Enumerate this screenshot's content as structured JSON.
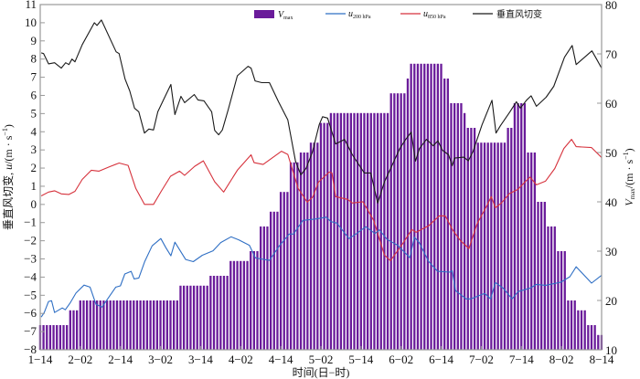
{
  "chart_data": {
    "type": "bar+line",
    "xlabel": "时间(日−时)",
    "ylabel_left": {
      "prefix": "垂直风切变, ",
      "var": "u",
      "unit": "/(m · s",
      "exp": "−1",
      "close": ")"
    },
    "ylabel_right": {
      "var": "V",
      "sub": "max",
      "unit": "/(m · s",
      "exp": "−1",
      "close": ")"
    },
    "x_unit": "hours from 1-14",
    "xlim": [
      0,
      168
    ],
    "x_ticks": [
      {
        "h": 0,
        "label": "1−14"
      },
      {
        "h": 12,
        "label": "2−02"
      },
      {
        "h": 24,
        "label": "2−14"
      },
      {
        "h": 36,
        "label": "3−02"
      },
      {
        "h": 48,
        "label": "3−14"
      },
      {
        "h": 60,
        "label": "4−02"
      },
      {
        "h": 72,
        "label": "4−14"
      },
      {
        "h": 84,
        "label": "5−02"
      },
      {
        "h": 96,
        "label": "5−14"
      },
      {
        "h": 108,
        "label": "6−02"
      },
      {
        "h": 120,
        "label": "6−14"
      },
      {
        "h": 132,
        "label": "7−02"
      },
      {
        "h": 144,
        "label": "7−14"
      },
      {
        "h": 156,
        "label": "8−02"
      },
      {
        "h": 168,
        "label": "8−14"
      }
    ],
    "ylim_left": [
      -8,
      11
    ],
    "y_ticks_left": [
      -8,
      -7,
      -6,
      -5,
      -4,
      -3,
      -2,
      -1,
      0,
      1,
      2,
      3,
      4,
      5,
      6,
      7,
      8,
      9,
      10,
      11
    ],
    "ylim_right": [
      10,
      80
    ],
    "y_ticks_right": [
      10,
      20,
      30,
      40,
      50,
      60,
      70,
      80
    ],
    "legend": [
      {
        "name": "Vmax",
        "var": "V",
        "sub": "max",
        "kind": "bar",
        "color": "#6a1b9a"
      },
      {
        "name": "u200hPa",
        "var": "u",
        "sub": "200 hPa",
        "kind": "line",
        "color": "#2f6fc4"
      },
      {
        "name": "u850hPa",
        "var": "u",
        "sub": "850 hPa",
        "kind": "line",
        "color": "#d6323c"
      },
      {
        "name": "shear",
        "var": "垂直风切变",
        "sub": "",
        "kind": "line",
        "color": "#1a1a1a"
      }
    ],
    "legend_position": "top",
    "vmax_steps": [
      [
        0,
        8,
        15
      ],
      [
        9,
        11,
        18
      ],
      [
        12,
        41,
        20
      ],
      [
        42,
        50,
        23
      ],
      [
        51,
        56,
        25
      ],
      [
        57,
        62,
        28
      ],
      [
        63,
        65,
        30
      ],
      [
        66,
        68,
        35
      ],
      [
        69,
        71,
        38
      ],
      [
        72,
        74,
        42
      ],
      [
        75,
        77,
        48
      ],
      [
        78,
        80,
        50
      ],
      [
        81,
        83,
        52
      ],
      [
        84,
        86,
        56
      ],
      [
        87,
        104,
        58
      ],
      [
        105,
        109,
        62
      ],
      [
        110,
        110,
        65
      ],
      [
        111,
        120,
        68
      ],
      [
        121,
        122,
        65
      ],
      [
        123,
        126,
        60
      ],
      [
        127,
        127,
        58
      ],
      [
        128,
        130,
        55
      ],
      [
        131,
        139,
        52
      ],
      [
        140,
        141,
        55
      ],
      [
        142,
        145,
        60
      ],
      [
        146,
        148,
        50
      ],
      [
        149,
        151,
        40
      ],
      [
        152,
        154,
        35
      ],
      [
        155,
        157,
        30
      ],
      [
        158,
        160,
        20
      ],
      [
        161,
        163,
        18
      ],
      [
        164,
        166,
        15
      ],
      [
        167,
        168,
        13
      ]
    ],
    "series": [
      {
        "name": "垂直风切变",
        "axis": "left",
        "color": "#1a1a1a",
        "points": [
          [
            0.3,
            8.34
          ],
          [
            1,
            8.3
          ],
          [
            2.5,
            7.74
          ],
          [
            4.3,
            7.8
          ],
          [
            6.3,
            7.5
          ],
          [
            7.6,
            7.8
          ],
          [
            8.6,
            7.7
          ],
          [
            9.5,
            8.0
          ],
          [
            10.4,
            7.85
          ],
          [
            12.6,
            8.8
          ],
          [
            16.2,
            10.0
          ],
          [
            17,
            9.85
          ],
          [
            18.3,
            10.15
          ],
          [
            22.7,
            8.4
          ],
          [
            23.6,
            8.3
          ],
          [
            25.4,
            6.9
          ],
          [
            26.8,
            6.25
          ],
          [
            28.2,
            5.3
          ],
          [
            29.5,
            5.1
          ],
          [
            31.2,
            3.93
          ],
          [
            32.5,
            4.15
          ],
          [
            33.9,
            4.1
          ],
          [
            35.2,
            5.1
          ],
          [
            37,
            5.8
          ],
          [
            39.1,
            6.6
          ],
          [
            40.3,
            4.95
          ],
          [
            42.1,
            5.95
          ],
          [
            43.2,
            5.6
          ],
          [
            46.1,
            6.05
          ],
          [
            47.2,
            5.75
          ],
          [
            49,
            5.7
          ],
          [
            51.3,
            5.1
          ],
          [
            52.2,
            4.08
          ],
          [
            53.4,
            3.83
          ],
          [
            54.5,
            4.1
          ],
          [
            56.3,
            5.25
          ],
          [
            59,
            7.08
          ],
          [
            62.2,
            7.6
          ],
          [
            63.1,
            7.5
          ],
          [
            64.3,
            6.8
          ],
          [
            66.3,
            6.7
          ],
          [
            68.6,
            6.7
          ],
          [
            71.3,
            5.65
          ],
          [
            74.1,
            4.65
          ],
          [
            76.4,
            2.38
          ],
          [
            78,
            1.63
          ],
          [
            79.6,
            2.0
          ],
          [
            81.4,
            2.85
          ],
          [
            83.5,
            4.4
          ],
          [
            84.5,
            4.83
          ],
          [
            86,
            4.75
          ],
          [
            88.4,
            3.33
          ],
          [
            91.1,
            3.58
          ],
          [
            93.4,
            2.73
          ],
          [
            97,
            1.73
          ],
          [
            98.9,
            1.73
          ],
          [
            101,
            0.08
          ],
          [
            103,
            1.23
          ],
          [
            107.6,
            3.08
          ],
          [
            109.4,
            3.58
          ],
          [
            111,
            3.98
          ],
          [
            112.3,
            2.38
          ],
          [
            113.5,
            3.08
          ],
          [
            115.6,
            3.58
          ],
          [
            117.6,
            3.23
          ],
          [
            119,
            3.5
          ],
          [
            120.4,
            2.98
          ],
          [
            122.2,
            2.73
          ],
          [
            123.3,
            2.13
          ],
          [
            124,
            2.55
          ],
          [
            126.8,
            2.6
          ],
          [
            128.1,
            2.4
          ],
          [
            129.5,
            2.9
          ],
          [
            132.2,
            4.38
          ],
          [
            135.2,
            5.73
          ],
          [
            136.4,
            3.93
          ],
          [
            137.7,
            4.33
          ],
          [
            140.5,
            5.08
          ],
          [
            142.5,
            5.65
          ],
          [
            143.7,
            5.3
          ],
          [
            145.5,
            5.73
          ],
          [
            146.9,
            5.98
          ],
          [
            148.5,
            5.4
          ],
          [
            151.4,
            5.9
          ],
          [
            153.7,
            6.5
          ],
          [
            156.9,
            8.1
          ],
          [
            159.2,
            8.75
          ],
          [
            160.4,
            7.7
          ],
          [
            165.1,
            8.45
          ],
          [
            166.5,
            8.0
          ],
          [
            168,
            7.5
          ]
        ]
      },
      {
        "name": "u850hPa",
        "axis": "left",
        "color": "#d6323c",
        "points": [
          [
            0.3,
            0.47
          ],
          [
            2.5,
            0.68
          ],
          [
            4.3,
            0.75
          ],
          [
            6.3,
            0.58
          ],
          [
            8.6,
            0.55
          ],
          [
            10.4,
            0.72
          ],
          [
            12.6,
            1.38
          ],
          [
            15.3,
            1.88
          ],
          [
            17.6,
            1.83
          ],
          [
            20.8,
            2.08
          ],
          [
            23.6,
            2.28
          ],
          [
            26.3,
            2.15
          ],
          [
            28.6,
            0.88
          ],
          [
            31.2,
            0.0
          ],
          [
            33.9,
            0.0
          ],
          [
            36.2,
            0.72
          ],
          [
            39,
            1.55
          ],
          [
            41.7,
            1.83
          ],
          [
            43.2,
            1.6
          ],
          [
            46.2,
            2.1
          ],
          [
            48.8,
            2.4
          ],
          [
            52.2,
            1.25
          ],
          [
            54.9,
            0.68
          ],
          [
            59,
            1.88
          ],
          [
            63.1,
            2.73
          ],
          [
            64,
            2.3
          ],
          [
            66.7,
            2.2
          ],
          [
            72.2,
            2.93
          ],
          [
            74.1,
            2.75
          ],
          [
            77.2,
            0.88
          ],
          [
            79.9,
            0.13
          ],
          [
            81.5,
            0.4
          ],
          [
            83.3,
            1.23
          ],
          [
            86.5,
            1.78
          ],
          [
            87.3,
            1.73
          ],
          [
            88.4,
            0.43
          ],
          [
            92,
            0.28
          ],
          [
            93.4,
            0.08
          ],
          [
            96.6,
            0.15
          ],
          [
            99.8,
            -0.88
          ],
          [
            103,
            -2.78
          ],
          [
            104.8,
            -3.1
          ],
          [
            108.4,
            -2.18
          ],
          [
            111.2,
            -1.38
          ],
          [
            112.5,
            -1.53
          ],
          [
            116.2,
            -1.18
          ],
          [
            119.4,
            -0.63
          ],
          [
            121.2,
            -0.63
          ],
          [
            123.5,
            -1.43
          ],
          [
            125.7,
            -1.98
          ],
          [
            128.3,
            -2.43
          ],
          [
            130.7,
            -1.08
          ],
          [
            133.5,
            -0.13
          ],
          [
            135,
            0.43
          ],
          [
            136.2,
            -0.18
          ],
          [
            138,
            0.08
          ],
          [
            140.3,
            0.58
          ],
          [
            143,
            0.83
          ],
          [
            145.3,
            1.28
          ],
          [
            146.6,
            1.5
          ],
          [
            148.5,
            1.08
          ],
          [
            151.2,
            1.28
          ],
          [
            154,
            1.98
          ],
          [
            156.7,
            3.08
          ],
          [
            159,
            3.58
          ],
          [
            160.4,
            3.18
          ],
          [
            165,
            3.13
          ],
          [
            168,
            2.58
          ]
        ]
      },
      {
        "name": "u200hPa",
        "axis": "left",
        "color": "#2f6fc4",
        "points": [
          [
            0.3,
            -6.2
          ],
          [
            1.2,
            -5.95
          ],
          [
            2.5,
            -5.34
          ],
          [
            3.4,
            -5.3
          ],
          [
            4.3,
            -5.95
          ],
          [
            6.6,
            -5.7
          ],
          [
            7.5,
            -5.8
          ],
          [
            8.9,
            -5.44
          ],
          [
            10.7,
            -4.88
          ],
          [
            13.1,
            -4.44
          ],
          [
            14.9,
            -4.55
          ],
          [
            16.7,
            -5.5
          ],
          [
            18.5,
            -5.65
          ],
          [
            22.6,
            -4.55
          ],
          [
            24,
            -4.48
          ],
          [
            25.3,
            -3.83
          ],
          [
            27.2,
            -3.68
          ],
          [
            28.1,
            -4.1
          ],
          [
            29.5,
            -4.05
          ],
          [
            31.3,
            -3.13
          ],
          [
            33.5,
            -2.28
          ],
          [
            36.1,
            -1.88
          ],
          [
            37.6,
            -2.38
          ],
          [
            39.1,
            -2.83
          ],
          [
            40.3,
            -2.08
          ],
          [
            43.5,
            -3.03
          ],
          [
            45.8,
            -3.15
          ],
          [
            48.5,
            -2.8
          ],
          [
            51.7,
            -2.55
          ],
          [
            54,
            -2.1
          ],
          [
            57.1,
            -1.78
          ],
          [
            59.4,
            -1.95
          ],
          [
            62.6,
            -2.25
          ],
          [
            64.4,
            -2.95
          ],
          [
            68.6,
            -3.08
          ],
          [
            71.7,
            -2.25
          ],
          [
            74.5,
            -1.63
          ],
          [
            75.8,
            -1.63
          ],
          [
            78.6,
            -0.88
          ],
          [
            82.4,
            -0.8
          ],
          [
            85.6,
            -0.7
          ],
          [
            87,
            -0.95
          ],
          [
            88.8,
            -1.03
          ],
          [
            92.4,
            -1.88
          ],
          [
            94.7,
            -1.6
          ],
          [
            97.4,
            -1.23
          ],
          [
            100.2,
            -1.6
          ],
          [
            101.5,
            -1.4
          ],
          [
            103.8,
            -1.93
          ],
          [
            107,
            -2.25
          ],
          [
            110.6,
            -2.93
          ],
          [
            112,
            -1.8
          ],
          [
            113.4,
            -2.1
          ],
          [
            116.2,
            -3.13
          ],
          [
            118.9,
            -3.68
          ],
          [
            122.5,
            -3.73
          ],
          [
            123.3,
            -3.65
          ],
          [
            124.3,
            -4.75
          ],
          [
            127.5,
            -5.2
          ],
          [
            128.9,
            -5.2
          ],
          [
            133,
            -4.9
          ],
          [
            134.8,
            -5.2
          ],
          [
            136.2,
            -4.3
          ],
          [
            138.5,
            -4.6
          ],
          [
            141.2,
            -5.2
          ],
          [
            143,
            -4.8
          ],
          [
            146.7,
            -4.6
          ],
          [
            148.5,
            -4.4
          ],
          [
            151.2,
            -4.45
          ],
          [
            155.8,
            -4.28
          ],
          [
            158.5,
            -3.98
          ],
          [
            160.4,
            -3.43
          ],
          [
            165,
            -4.33
          ],
          [
            168,
            -3.9
          ]
        ]
      }
    ]
  }
}
